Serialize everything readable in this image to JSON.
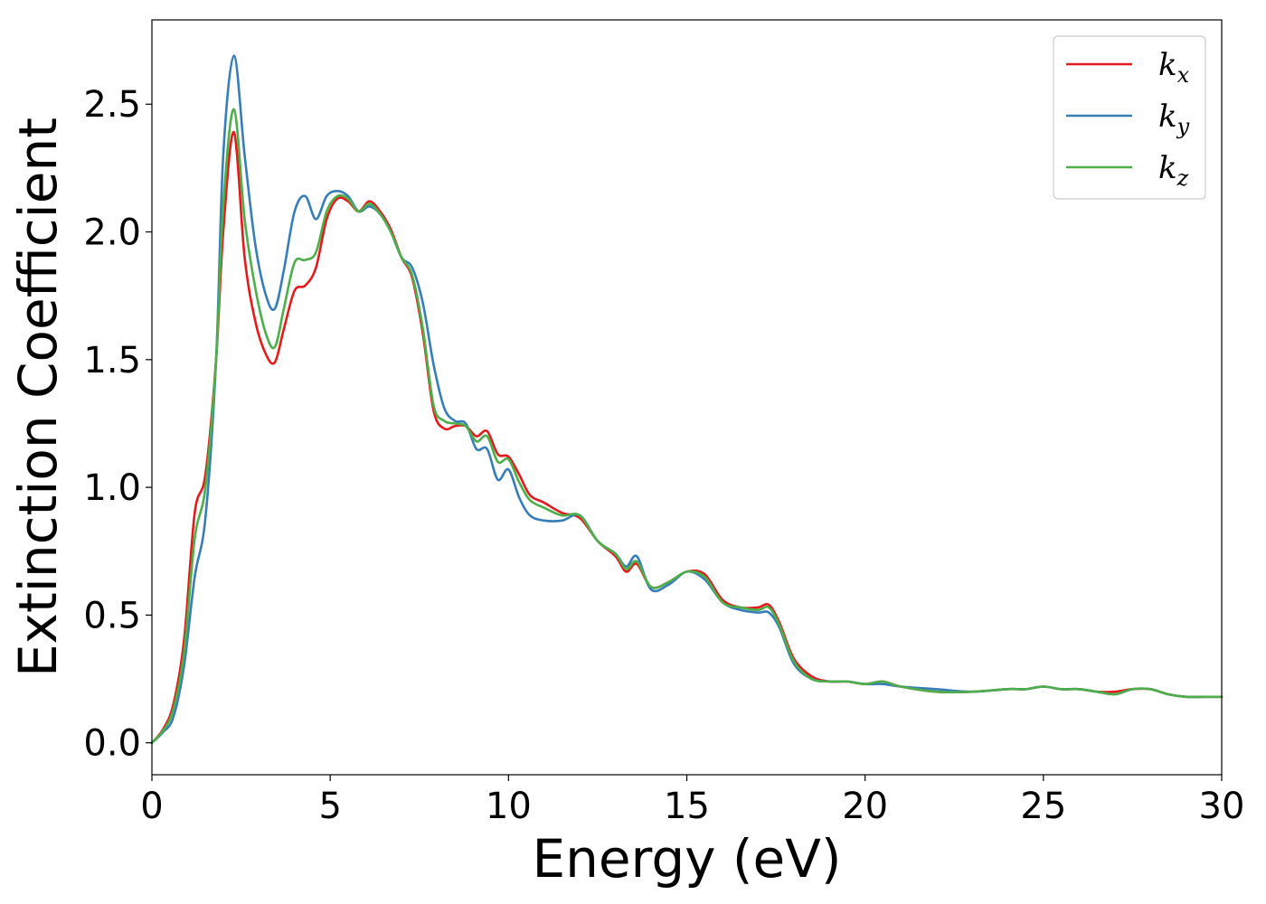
{
  "chart_data": {
    "type": "line",
    "title": "",
    "xlabel": "Energy (eV)",
    "ylabel": "Extinction Coefficient",
    "xlim": [
      0,
      30
    ],
    "ylim": [
      -0.125,
      2.83
    ],
    "xticks": [
      0,
      5,
      10,
      15,
      20,
      25,
      30
    ],
    "xtick_labels": [
      "0",
      "5",
      "10",
      "15",
      "20",
      "25",
      "30"
    ],
    "yticks": [
      0.0,
      0.5,
      1.0,
      1.5,
      2.0,
      2.5
    ],
    "ytick_labels": [
      "0.0",
      "0.5",
      "1.0",
      "1.5",
      "2.0",
      "2.5"
    ],
    "grid": false,
    "legend_position": "top-right",
    "series": [
      {
        "name": "k_x",
        "legend_main": "k",
        "legend_sub": "x",
        "color": "#e41a1c",
        "x": [
          0,
          0.3,
          0.6,
          0.9,
          1.2,
          1.5,
          1.8,
          2.0,
          2.3,
          2.6,
          2.9,
          3.2,
          3.45,
          3.7,
          4.0,
          4.3,
          4.6,
          4.9,
          5.2,
          5.5,
          5.8,
          6.1,
          6.4,
          6.7,
          7.0,
          7.3,
          7.6,
          7.9,
          8.2,
          8.5,
          8.8,
          9.1,
          9.4,
          9.7,
          10.0,
          10.3,
          10.6,
          11.0,
          11.5,
          12.0,
          12.5,
          13.0,
          13.3,
          13.6,
          14.0,
          14.5,
          15.0,
          15.5,
          16.0,
          16.5,
          17.0,
          17.3,
          17.6,
          18.0,
          18.5,
          19.0,
          19.5,
          20.0,
          20.5,
          21.0,
          22.0,
          23.0,
          24.0,
          24.5,
          25.0,
          25.5,
          26.0,
          26.5,
          27.0,
          27.5,
          28.0,
          28.5,
          29.0,
          29.5,
          30.0
        ],
        "y": [
          0.0,
          0.05,
          0.15,
          0.4,
          0.9,
          1.05,
          1.5,
          2.0,
          2.39,
          1.9,
          1.65,
          1.52,
          1.49,
          1.62,
          1.77,
          1.79,
          1.86,
          2.05,
          2.13,
          2.12,
          2.08,
          2.12,
          2.08,
          2.01,
          1.9,
          1.82,
          1.6,
          1.3,
          1.23,
          1.24,
          1.24,
          1.2,
          1.22,
          1.13,
          1.12,
          1.05,
          0.97,
          0.94,
          0.9,
          0.88,
          0.79,
          0.73,
          0.67,
          0.7,
          0.61,
          0.63,
          0.67,
          0.66,
          0.56,
          0.53,
          0.53,
          0.54,
          0.47,
          0.33,
          0.26,
          0.24,
          0.24,
          0.23,
          0.24,
          0.22,
          0.2,
          0.2,
          0.21,
          0.21,
          0.22,
          0.21,
          0.21,
          0.2,
          0.2,
          0.21,
          0.21,
          0.19,
          0.18,
          0.18,
          0.18
        ]
      },
      {
        "name": "k_y",
        "legend_main": "k",
        "legend_sub": "y",
        "color": "#377eb8",
        "x": [
          0,
          0.3,
          0.6,
          0.9,
          1.2,
          1.5,
          1.8,
          2.0,
          2.3,
          2.6,
          2.9,
          3.2,
          3.45,
          3.7,
          4.0,
          4.3,
          4.6,
          4.9,
          5.2,
          5.5,
          5.8,
          6.1,
          6.4,
          6.7,
          7.0,
          7.3,
          7.6,
          7.9,
          8.2,
          8.5,
          8.8,
          9.1,
          9.4,
          9.7,
          10.0,
          10.3,
          10.6,
          11.0,
          11.5,
          12.0,
          12.5,
          13.0,
          13.3,
          13.6,
          14.0,
          14.5,
          15.0,
          15.5,
          16.0,
          16.5,
          17.0,
          17.3,
          17.6,
          18.0,
          18.5,
          19.0,
          19.5,
          20.0,
          20.5,
          21.0,
          22.0,
          23.0,
          24.0,
          24.5,
          25.0,
          25.5,
          26.0,
          26.5,
          27.0,
          27.5,
          28.0,
          28.5,
          29.0,
          29.5,
          30.0
        ],
        "y": [
          0.0,
          0.04,
          0.1,
          0.3,
          0.65,
          0.88,
          1.5,
          2.3,
          2.69,
          2.3,
          1.95,
          1.75,
          1.7,
          1.85,
          2.08,
          2.14,
          2.05,
          2.14,
          2.16,
          2.14,
          2.08,
          2.1,
          2.07,
          2.0,
          1.9,
          1.86,
          1.72,
          1.48,
          1.31,
          1.26,
          1.25,
          1.15,
          1.15,
          1.03,
          1.07,
          0.96,
          0.89,
          0.87,
          0.87,
          0.89,
          0.79,
          0.74,
          0.69,
          0.73,
          0.6,
          0.62,
          0.67,
          0.64,
          0.55,
          0.52,
          0.51,
          0.51,
          0.45,
          0.31,
          0.25,
          0.24,
          0.24,
          0.23,
          0.23,
          0.22,
          0.21,
          0.2,
          0.21,
          0.21,
          0.22,
          0.21,
          0.21,
          0.2,
          0.19,
          0.21,
          0.21,
          0.19,
          0.18,
          0.18,
          0.18
        ]
      },
      {
        "name": "k_z",
        "legend_main": "k",
        "legend_sub": "z",
        "color": "#4daf4a",
        "x": [
          0,
          0.3,
          0.6,
          0.9,
          1.2,
          1.5,
          1.8,
          2.0,
          2.3,
          2.6,
          2.9,
          3.2,
          3.45,
          3.7,
          4.0,
          4.3,
          4.6,
          4.9,
          5.2,
          5.5,
          5.8,
          6.1,
          6.4,
          6.7,
          7.0,
          7.3,
          7.6,
          7.9,
          8.2,
          8.5,
          8.8,
          9.1,
          9.4,
          9.7,
          10.0,
          10.3,
          10.6,
          11.0,
          11.5,
          12.0,
          12.5,
          13.0,
          13.3,
          13.6,
          14.0,
          14.5,
          15.0,
          15.5,
          16.0,
          16.5,
          17.0,
          17.3,
          17.6,
          18.0,
          18.5,
          19.0,
          19.5,
          20.0,
          20.5,
          21.0,
          22.0,
          23.0,
          24.0,
          24.5,
          25.0,
          25.5,
          26.0,
          26.5,
          27.0,
          27.5,
          28.0,
          28.5,
          29.0,
          29.5,
          30.0
        ],
        "y": [
          0.0,
          0.045,
          0.13,
          0.35,
          0.8,
          1.0,
          1.5,
          2.1,
          2.48,
          2.05,
          1.78,
          1.6,
          1.55,
          1.7,
          1.88,
          1.89,
          1.92,
          2.08,
          2.14,
          2.13,
          2.08,
          2.11,
          2.07,
          2.0,
          1.9,
          1.83,
          1.62,
          1.32,
          1.26,
          1.25,
          1.24,
          1.18,
          1.2,
          1.1,
          1.11,
          1.02,
          0.95,
          0.92,
          0.89,
          0.89,
          0.79,
          0.74,
          0.68,
          0.71,
          0.61,
          0.63,
          0.67,
          0.65,
          0.55,
          0.53,
          0.52,
          0.53,
          0.46,
          0.32,
          0.25,
          0.24,
          0.24,
          0.23,
          0.24,
          0.22,
          0.2,
          0.2,
          0.21,
          0.21,
          0.22,
          0.21,
          0.21,
          0.2,
          0.19,
          0.21,
          0.21,
          0.19,
          0.18,
          0.18,
          0.18
        ]
      }
    ]
  }
}
